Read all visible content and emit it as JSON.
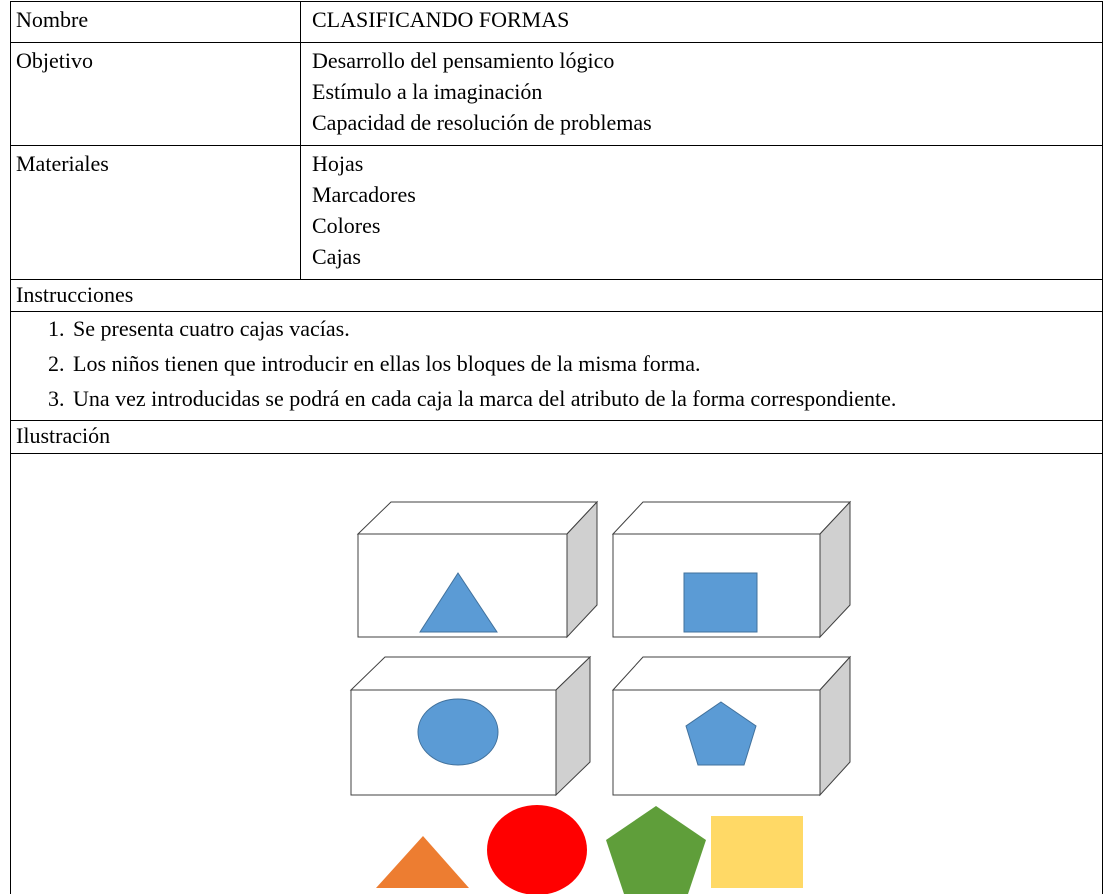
{
  "table": {
    "rows": [
      {
        "label": "Nombre",
        "items": [
          "CLASIFICANDO FORMAS"
        ]
      },
      {
        "label": "Objetivo",
        "items": [
          "Desarrollo del pensamiento lógico",
          "Estímulo a la imaginación",
          "Capacidad de resolución de problemas"
        ]
      },
      {
        "label": "Materiales",
        "items": [
          "Hojas",
          "Marcadores",
          "Colores",
          "Cajas"
        ]
      }
    ],
    "instructions": {
      "label": "Instrucciones",
      "steps": [
        {
          "number": "1.",
          "text": "Se presenta cuatro cajas vacías."
        },
        {
          "number": "2.",
          "text": "Los niños tienen que introducir en ellas los bloques de la misma forma."
        },
        {
          "number": "3.",
          "text": "Una vez introducidas se podrá en cada caja la marca del atributo de la forma correspondiente."
        }
      ]
    },
    "illustration": {
      "label": "Ilustración"
    }
  }
}
